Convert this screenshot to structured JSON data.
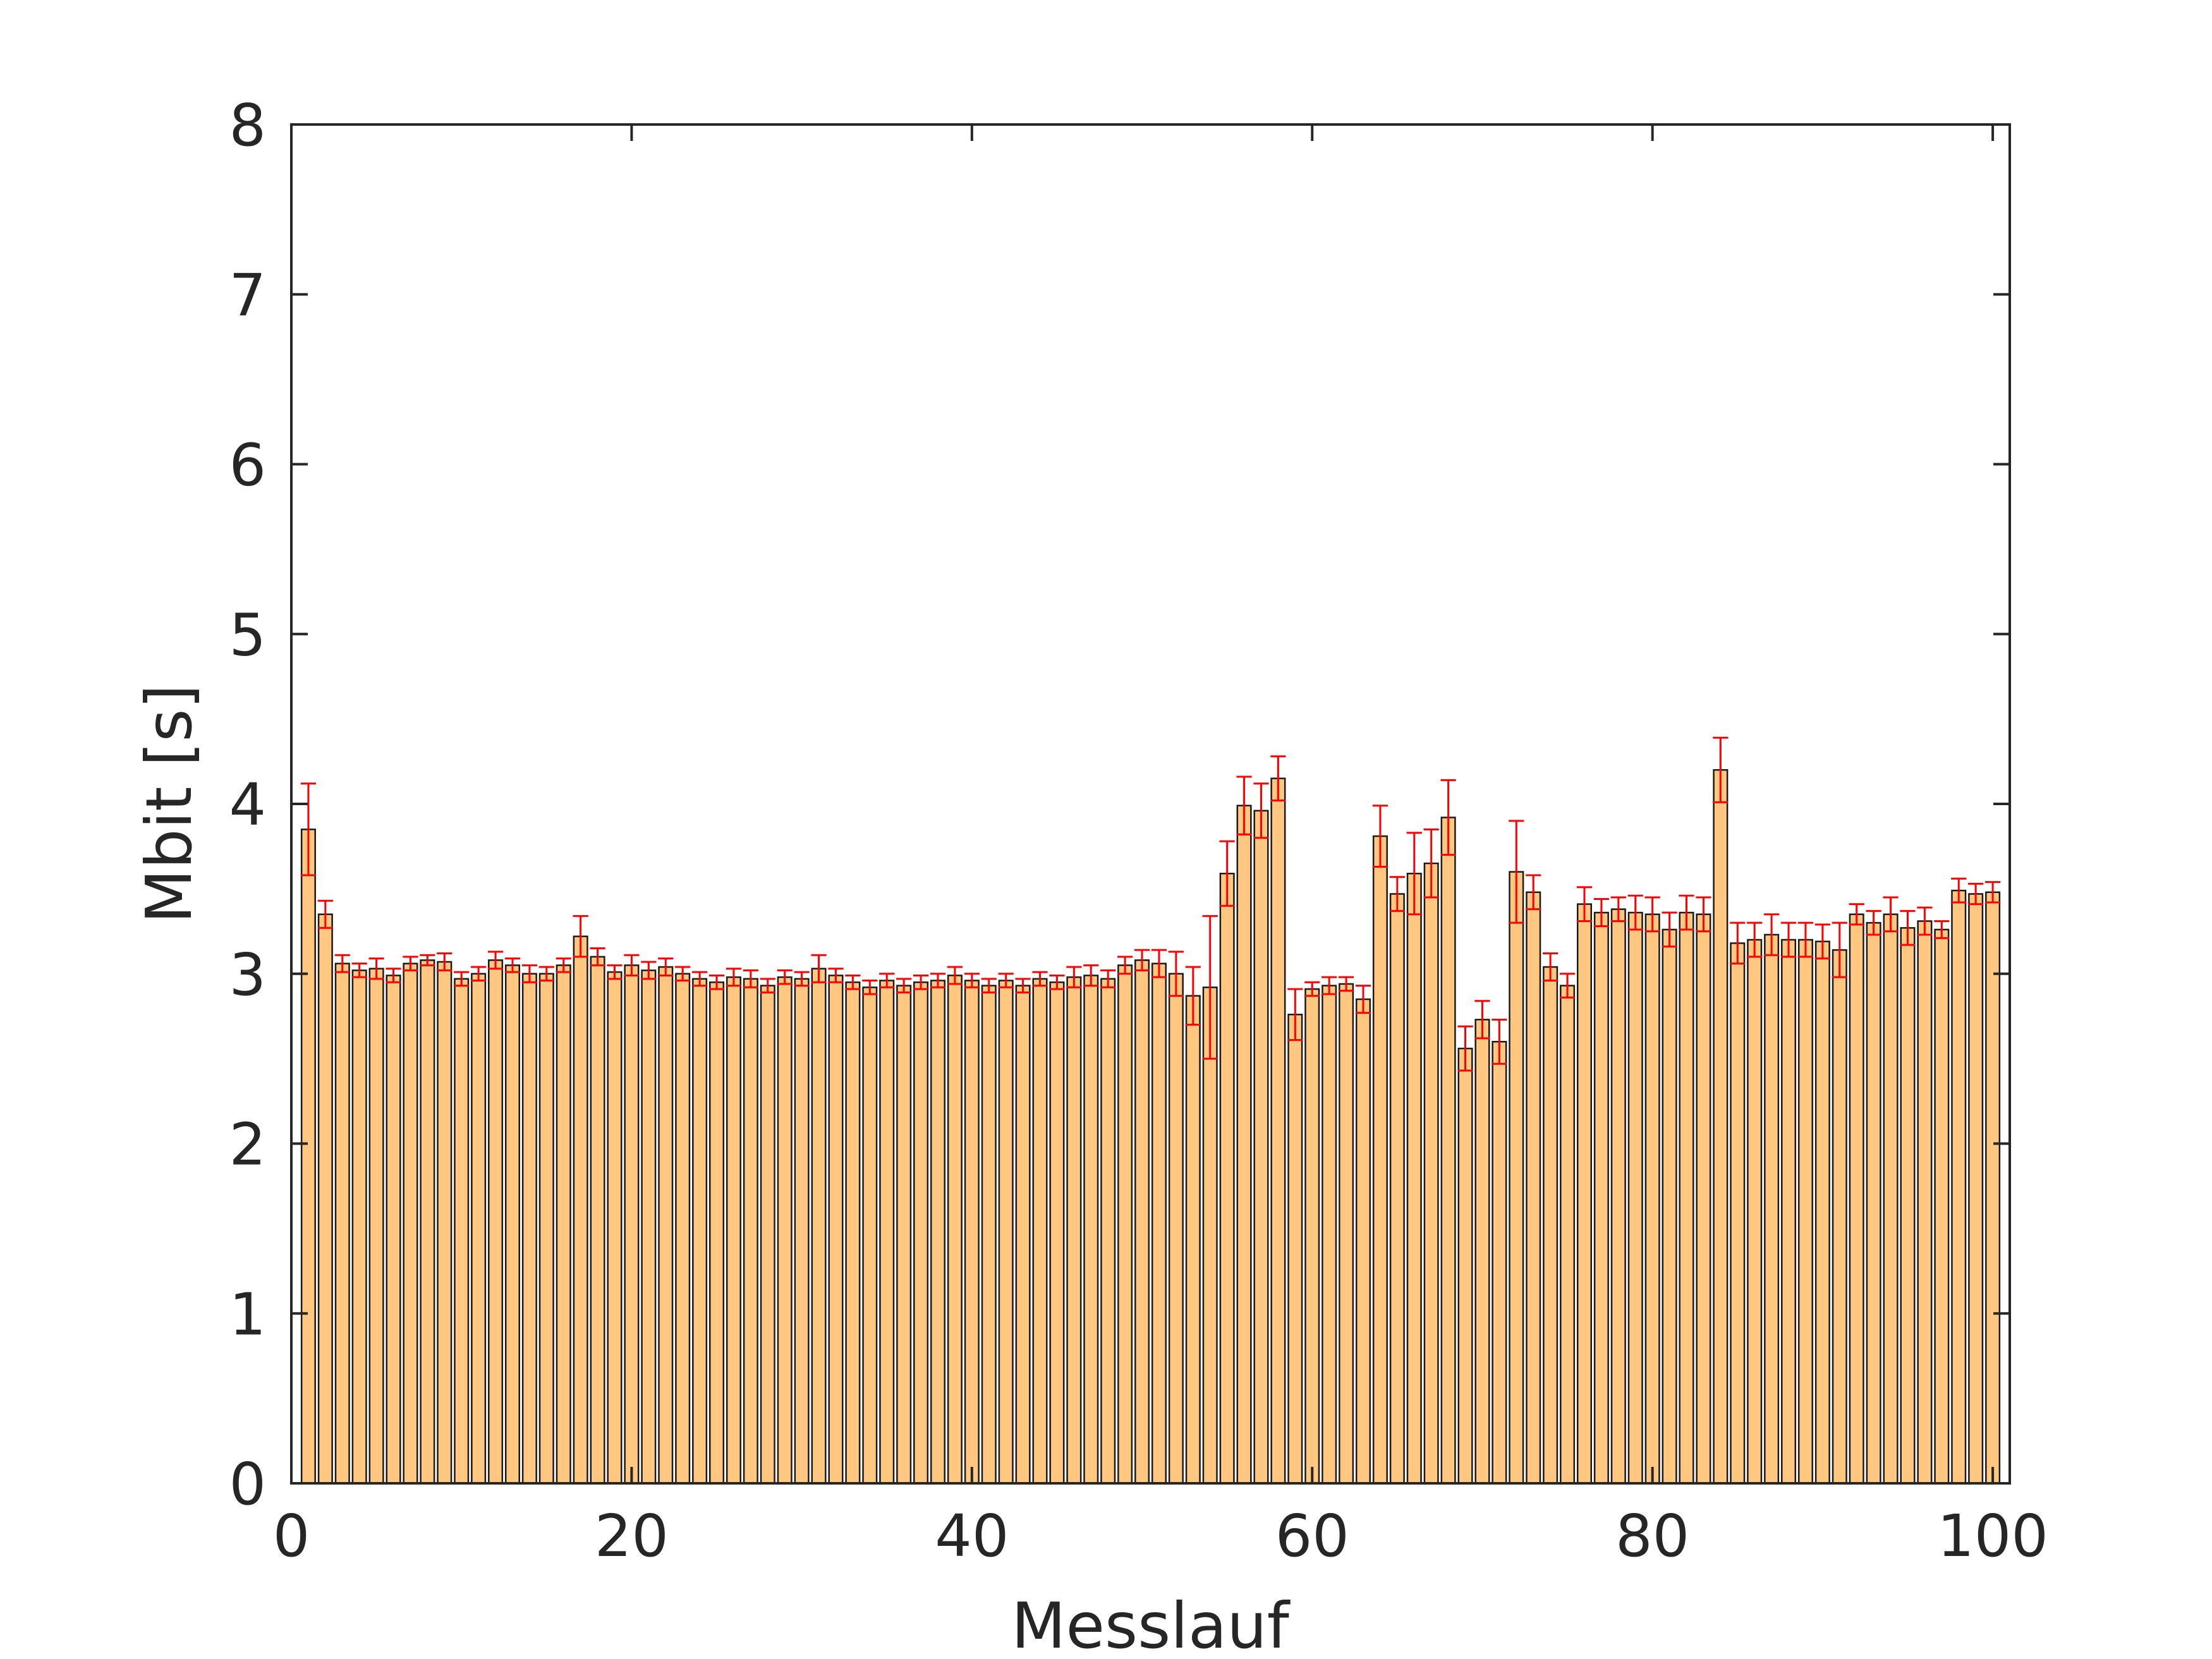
{
  "chart_data": {
    "type": "bar",
    "xlabel": "Messlauf",
    "ylabel": "Mbit [s]",
    "xlim": [
      0,
      101
    ],
    "ylim": [
      0,
      8
    ],
    "xticks": [
      "0",
      "20",
      "40",
      "60",
      "80",
      "100"
    ],
    "yticks": [
      "0",
      "1",
      "2",
      "3",
      "4",
      "5",
      "6",
      "7",
      "8"
    ],
    "grid": false,
    "bar_color": "#ffc77f",
    "bar_edge_color": "#1a1a1a",
    "errorbar_color": "#ff0000",
    "x": [
      1,
      2,
      3,
      4,
      5,
      6,
      7,
      8,
      9,
      10,
      11,
      12,
      13,
      14,
      15,
      16,
      17,
      18,
      19,
      20,
      21,
      22,
      23,
      24,
      25,
      26,
      27,
      28,
      29,
      30,
      31,
      32,
      33,
      34,
      35,
      36,
      37,
      38,
      39,
      40,
      41,
      42,
      43,
      44,
      45,
      46,
      47,
      48,
      49,
      50,
      51,
      52,
      53,
      54,
      55,
      56,
      57,
      58,
      59,
      60,
      61,
      62,
      63,
      64,
      65,
      66,
      67,
      68,
      69,
      70,
      71,
      72,
      73,
      74,
      75,
      76,
      77,
      78,
      79,
      80,
      81,
      82,
      83,
      84,
      85,
      86,
      87,
      88,
      89,
      90,
      91,
      92,
      93,
      94,
      95,
      96,
      97,
      98,
      99,
      100
    ],
    "values": [
      3.85,
      3.35,
      3.06,
      3.02,
      3.03,
      2.99,
      3.06,
      3.08,
      3.07,
      2.97,
      3.0,
      3.08,
      3.05,
      3.0,
      3.0,
      3.05,
      3.22,
      3.1,
      3.01,
      3.05,
      3.02,
      3.04,
      3.0,
      2.97,
      2.95,
      2.98,
      2.97,
      2.93,
      2.98,
      2.97,
      3.03,
      2.99,
      2.95,
      2.92,
      2.96,
      2.93,
      2.95,
      2.96,
      2.99,
      2.96,
      2.93,
      2.96,
      2.93,
      2.97,
      2.95,
      2.98,
      2.99,
      2.97,
      3.05,
      3.08,
      3.06,
      3.0,
      2.87,
      2.92,
      3.59,
      3.99,
      3.96,
      4.15,
      2.76,
      2.91,
      2.93,
      2.94,
      2.85,
      3.81,
      3.47,
      3.59,
      3.65,
      3.92,
      2.56,
      2.73,
      2.6,
      3.6,
      3.48,
      3.04,
      2.93,
      3.41,
      3.36,
      3.38,
      3.36,
      3.35,
      3.26,
      3.36,
      3.35,
      4.2,
      3.18,
      3.2,
      3.23,
      3.2,
      3.2,
      3.19,
      3.14,
      3.35,
      3.3,
      3.35,
      3.27,
      3.31,
      3.26,
      3.49,
      3.47,
      3.48
    ],
    "errors": [
      0.27,
      0.08,
      0.05,
      0.04,
      0.06,
      0.04,
      0.04,
      0.03,
      0.05,
      0.04,
      0.04,
      0.05,
      0.04,
      0.05,
      0.04,
      0.04,
      0.12,
      0.05,
      0.04,
      0.06,
      0.05,
      0.05,
      0.04,
      0.04,
      0.04,
      0.05,
      0.05,
      0.04,
      0.04,
      0.04,
      0.08,
      0.04,
      0.04,
      0.04,
      0.04,
      0.04,
      0.04,
      0.04,
      0.05,
      0.04,
      0.04,
      0.04,
      0.04,
      0.04,
      0.04,
      0.06,
      0.06,
      0.05,
      0.05,
      0.06,
      0.08,
      0.13,
      0.17,
      0.42,
      0.19,
      0.17,
      0.16,
      0.13,
      0.15,
      0.04,
      0.05,
      0.04,
      0.08,
      0.18,
      0.1,
      0.24,
      0.2,
      0.22,
      0.13,
      0.11,
      0.13,
      0.3,
      0.1,
      0.08,
      0.07,
      0.1,
      0.08,
      0.07,
      0.1,
      0.1,
      0.1,
      0.1,
      0.1,
      0.19,
      0.12,
      0.1,
      0.12,
      0.1,
      0.1,
      0.1,
      0.16,
      0.06,
      0.07,
      0.1,
      0.1,
      0.08,
      0.05,
      0.07,
      0.06,
      0.06
    ]
  }
}
